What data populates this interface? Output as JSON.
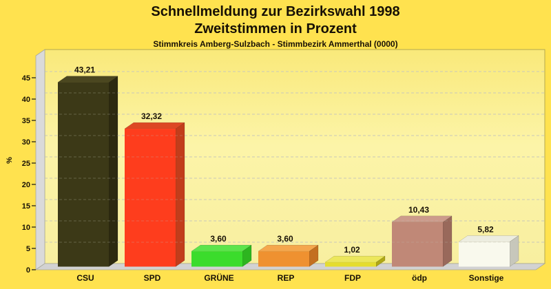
{
  "header": {
    "title_line1": "Schnellmeldung zur Bezirkswahl 1998",
    "title_line2": "Zweitstimmen in Prozent",
    "subtitle": "Stimmkreis Amberg-Sulzbach - Stimmbezirk Ammerthal (0000)"
  },
  "chart_data": {
    "type": "bar",
    "style": "3d-column",
    "title": "Schnellmeldung zur Bezirkswahl 1998",
    "subtitle": "Zweitstimmen in Prozent",
    "caption": "Stimmkreis Amberg-Sulzbach - Stimmbezirk Ammerthal (0000)",
    "categories": [
      "CSU",
      "SPD",
      "GRÜNE",
      "REP",
      "FDP",
      "ödp",
      "Sonstige"
    ],
    "values": [
      43.21,
      32.32,
      3.6,
      3.6,
      1.02,
      10.43,
      5.82
    ],
    "value_labels": [
      "43,21",
      "32,32",
      "3,60",
      "3,60",
      "1,02",
      "10,43",
      "5,82"
    ],
    "xlabel": "",
    "ylabel": "%",
    "ylim": [
      0,
      47
    ],
    "yticks": [
      0,
      5,
      10,
      15,
      20,
      25,
      30,
      35,
      40,
      45
    ],
    "grid": "horizontal-dashed",
    "legend_position": "none",
    "bar_colors": [
      {
        "party": "CSU",
        "front": "#3C3917",
        "top": "#4B4720",
        "side": "#2D2A10"
      },
      {
        "party": "SPD",
        "front": "#FE3D1D",
        "top": "#DD4824",
        "side": "#C23D1B"
      },
      {
        "party": "GRÜNE",
        "front": "#3BDC2C",
        "top": "#5CE44B",
        "side": "#2DB520"
      },
      {
        "party": "REP",
        "front": "#EF9130",
        "top": "#F5A74D",
        "side": "#C37020"
      },
      {
        "party": "FDP",
        "front": "#E5DD2F",
        "top": "#ECE75B",
        "side": "#AFA716"
      },
      {
        "party": "ödp",
        "front": "#C08877",
        "top": "#CC9B8B",
        "side": "#99695B"
      },
      {
        "party": "Sonstige",
        "front": "#F9F9ED",
        "top": "#EDEDE0",
        "side": "#C7C7BB"
      }
    ]
  },
  "colors": {
    "page_bg": "#FFE24F",
    "plot_wall_top": "#F9E97A",
    "plot_wall_mid": "#FCF4A8",
    "plot_wall_bottom": "#F8EFA0",
    "side_wall": "#DADADA",
    "floor": "#D2D2D2",
    "plot_edge": "#B3A84E",
    "grid_line": "#CCCCBE",
    "tick": "#33301A",
    "text": "#171005"
  }
}
